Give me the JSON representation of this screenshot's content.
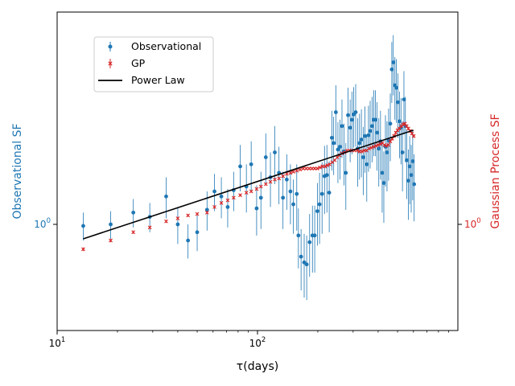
{
  "chart_data": {
    "type": "scatter",
    "xscale": "log",
    "yscale": "log",
    "xlabel": "τ(days)",
    "ylabel_left": "Observational SF",
    "ylabel_right": "Gaussian Process SF",
    "xlim": [
      10,
      1000
    ],
    "ylim_left": [
      0.5,
      4.0
    ],
    "ylim_right": [
      0.5,
      4.0
    ],
    "x_ticks": [
      {
        "value": 10,
        "base": "10",
        "exp": "1"
      },
      {
        "value": 100,
        "base": "10",
        "exp": "2"
      }
    ],
    "y_ticks_left": [
      {
        "value": 1.0,
        "base": "10",
        "exp": "0"
      }
    ],
    "y_ticks_right": [
      {
        "value": 1.0,
        "base": "10",
        "exp": "0"
      }
    ],
    "colors": {
      "observational": "#1f77b4",
      "gp": "#d62728",
      "power_law": "#000000"
    },
    "legend_position": "upper-left",
    "series": [
      {
        "name": "Observational",
        "marker": "circle",
        "x": [
          13.5,
          18.5,
          24,
          29,
          35,
          40,
          45,
          50,
          56,
          61,
          66,
          71,
          76,
          82,
          88,
          93,
          99,
          104,
          110,
          116,
          122,
          128,
          134,
          140,
          146,
          151,
          157,
          160,
          165,
          171,
          176,
          182,
          188,
          193,
          199,
          204,
          210,
          216,
          222,
          228,
          235,
          240,
          246,
          252,
          258,
          264,
          270,
          276,
          283,
          290,
          296,
          302,
          309,
          316,
          323,
          330,
          337,
          344,
          351,
          358,
          365,
          373,
          380,
          388,
          395,
          403,
          411,
          419,
          427,
          435,
          443,
          451,
          460,
          468,
          476,
          485,
          493,
          502,
          511,
          520,
          529,
          538,
          547,
          556,
          566,
          575,
          585,
          595,
          605
        ],
        "y": [
          0.99,
          1.0,
          1.08,
          1.05,
          1.2,
          1.0,
          0.9,
          0.95,
          1.1,
          1.24,
          1.2,
          1.12,
          1.25,
          1.46,
          1.28,
          1.48,
          1.11,
          1.19,
          1.55,
          1.36,
          1.6,
          1.4,
          1.19,
          1.34,
          1.24,
          1.14,
          1.22,
          0.93,
          0.81,
          0.78,
          0.77,
          0.89,
          0.93,
          0.93,
          1.09,
          1.14,
          1.22,
          1.37,
          1.38,
          1.23,
          1.76,
          1.7,
          2.08,
          1.63,
          1.66,
          1.9,
          1.61,
          1.4,
          2.04,
          1.88,
          1.98,
          2.05,
          2.08,
          1.64,
          1.7,
          1.74,
          1.55,
          1.78,
          1.48,
          1.79,
          1.84,
          1.9,
          1.98,
          1.98,
          1.82,
          1.64,
          1.72,
          1.4,
          1.31,
          1.66,
          1.6,
          1.73,
          1.93,
          2.75,
          2.88,
          2.48,
          2.44,
          2.22,
          1.96,
          1.88,
          1.6,
          2.26,
          1.9,
          1.52,
          1.33,
          1.46,
          1.38,
          1.51,
          1.3
        ],
        "yerr": [
          0.09,
          0.09,
          0.1,
          0.1,
          0.16,
          0.12,
          0.1,
          0.11,
          0.14,
          0.15,
          0.16,
          0.14,
          0.16,
          0.22,
          0.2,
          0.24,
          0.18,
          0.22,
          0.26,
          0.24,
          0.3,
          0.26,
          0.22,
          0.24,
          0.24,
          0.2,
          0.26,
          0.18,
          0.16,
          0.16,
          0.16,
          0.18,
          0.2,
          0.2,
          0.22,
          0.26,
          0.28,
          0.3,
          0.3,
          0.28,
          0.34,
          0.32,
          0.4,
          0.32,
          0.32,
          0.36,
          0.32,
          0.3,
          0.4,
          0.38,
          0.4,
          0.4,
          0.42,
          0.36,
          0.36,
          0.38,
          0.34,
          0.38,
          0.32,
          0.38,
          0.4,
          0.4,
          0.42,
          0.42,
          0.4,
          0.36,
          0.38,
          0.32,
          0.3,
          0.38,
          0.36,
          0.4,
          0.42,
          0.54,
          0.56,
          0.5,
          0.5,
          0.46,
          0.42,
          0.4,
          0.36,
          0.46,
          0.4,
          0.34,
          0.3,
          0.32,
          0.3,
          0.34,
          0.28
        ]
      },
      {
        "name": "GP",
        "marker": "x",
        "x": [
          13.5,
          18.5,
          24,
          29,
          35,
          40,
          45,
          50,
          56,
          61,
          66,
          71,
          76,
          82,
          88,
          93,
          99,
          104,
          110,
          116,
          122,
          128,
          134,
          140,
          146,
          151,
          157,
          163,
          169,
          175,
          181,
          187,
          193,
          199,
          205,
          211,
          217,
          223,
          229,
          236,
          243,
          250,
          257,
          264,
          272,
          280,
          288,
          296,
          305,
          314,
          323,
          332,
          341,
          350,
          360,
          370,
          380,
          390,
          400,
          410,
          420,
          430,
          440,
          450,
          460,
          470,
          480,
          490,
          500,
          511,
          522,
          533,
          544,
          555,
          566,
          578,
          590,
          602
        ],
        "y": [
          0.85,
          0.9,
          0.95,
          0.98,
          1.02,
          1.04,
          1.06,
          1.07,
          1.08,
          1.12,
          1.15,
          1.17,
          1.19,
          1.21,
          1.23,
          1.24,
          1.26,
          1.28,
          1.3,
          1.32,
          1.34,
          1.35,
          1.37,
          1.39,
          1.4,
          1.41,
          1.42,
          1.43,
          1.44,
          1.44,
          1.44,
          1.44,
          1.44,
          1.44,
          1.45,
          1.46,
          1.46,
          1.47,
          1.48,
          1.5,
          1.52,
          1.55,
          1.57,
          1.59,
          1.6,
          1.62,
          1.62,
          1.62,
          1.62,
          1.62,
          1.61,
          1.61,
          1.62,
          1.62,
          1.64,
          1.65,
          1.66,
          1.67,
          1.68,
          1.69,
          1.7,
          1.68,
          1.67,
          1.68,
          1.72,
          1.75,
          1.78,
          1.82,
          1.85,
          1.87,
          1.9,
          1.92,
          1.93,
          1.9,
          1.87,
          1.84,
          1.81,
          1.78
        ],
        "yerr": [
          0.01,
          0.01,
          0.01,
          0.01,
          0.01,
          0.01,
          0.01,
          0.01,
          0.01,
          0.01,
          0.01,
          0.01,
          0.01,
          0.01,
          0.01,
          0.01,
          0.01,
          0.01,
          0.01,
          0.01,
          0.01,
          0.01,
          0.01,
          0.01,
          0.01,
          0.01,
          0.01,
          0.01,
          0.01,
          0.01,
          0.01,
          0.01,
          0.01,
          0.01,
          0.01,
          0.01,
          0.01,
          0.01,
          0.01,
          0.01,
          0.01,
          0.01,
          0.01,
          0.01,
          0.01,
          0.01,
          0.01,
          0.01,
          0.01,
          0.01,
          0.01,
          0.01,
          0.01,
          0.01,
          0.01,
          0.01,
          0.01,
          0.01,
          0.01,
          0.01,
          0.01,
          0.01,
          0.01,
          0.01,
          0.02,
          0.02,
          0.02,
          0.02,
          0.02,
          0.02,
          0.02,
          0.02,
          0.02,
          0.02,
          0.02,
          0.02,
          0.02,
          0.02
        ]
      },
      {
        "name": "Power Law",
        "marker": "line",
        "x": [
          13.5,
          600
        ],
        "y": [
          0.91,
          1.85
        ]
      }
    ]
  }
}
